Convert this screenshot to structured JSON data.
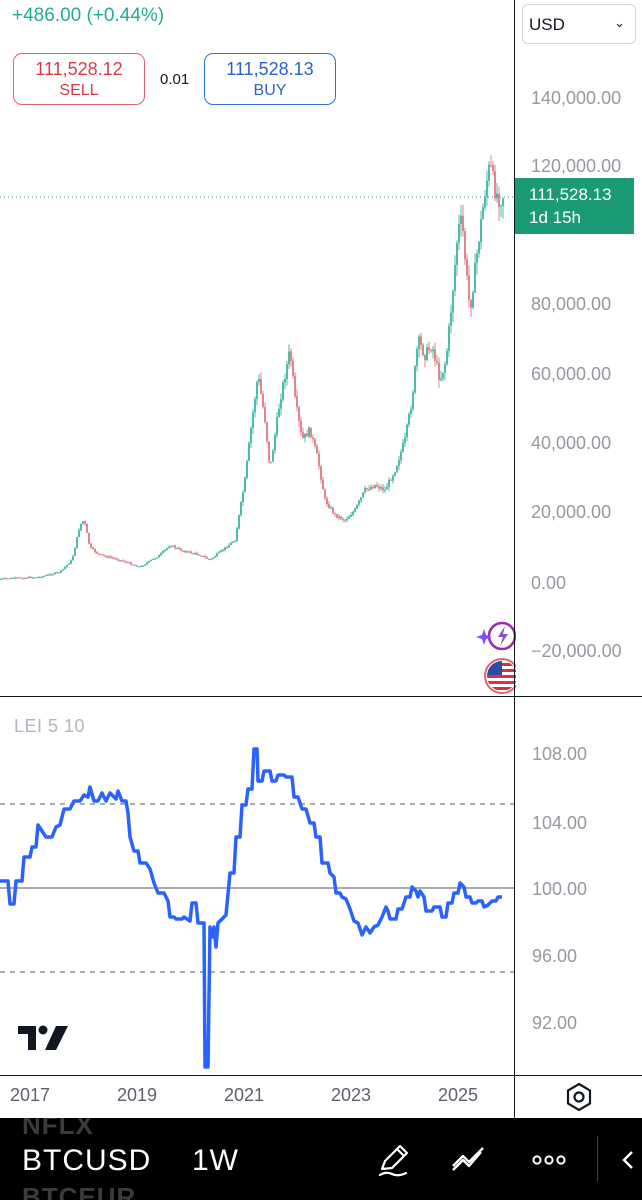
{
  "header": {
    "change": "+486.00 (+0.44%)",
    "currency": "USD"
  },
  "trade": {
    "sell_price": "111,528.12",
    "sell_label": "SELL",
    "spread": "0.01",
    "buy_price": "111,528.13",
    "buy_label": "BUY"
  },
  "price_badge": {
    "price": "111,528.13",
    "countdown": "1d 15h"
  },
  "price_axis": [
    "140,000.00",
    "120,000.00",
    "80,000.00",
    "60,000.00",
    "40,000.00",
    "20,000.00",
    "0.00",
    "−20,000.00"
  ],
  "indicator": {
    "legend": "LEI 5 10",
    "axis": [
      "108.00",
      "104.00",
      "100.00",
      "96.00",
      "92.00"
    ]
  },
  "time_axis": [
    "2017",
    "2019",
    "2021",
    "2023",
    "2025"
  ],
  "bottom_bar": {
    "prev_symbol": "NFLX",
    "symbol": "BTCUSD",
    "next_symbol": "BTCEUR",
    "interval": "1W"
  },
  "colors": {
    "up": "#22ab94",
    "down": "#e0646d",
    "indicator_line": "#2962ff",
    "badge": "#1b9a76"
  },
  "icons": [
    "chevron-down-icon",
    "ai-spark-icon",
    "us-flag-icon",
    "settings-hex-icon",
    "pencil-icon",
    "trend-line-icon",
    "more-icon",
    "chevron-left-icon",
    "tradingview-logo-icon"
  ]
}
